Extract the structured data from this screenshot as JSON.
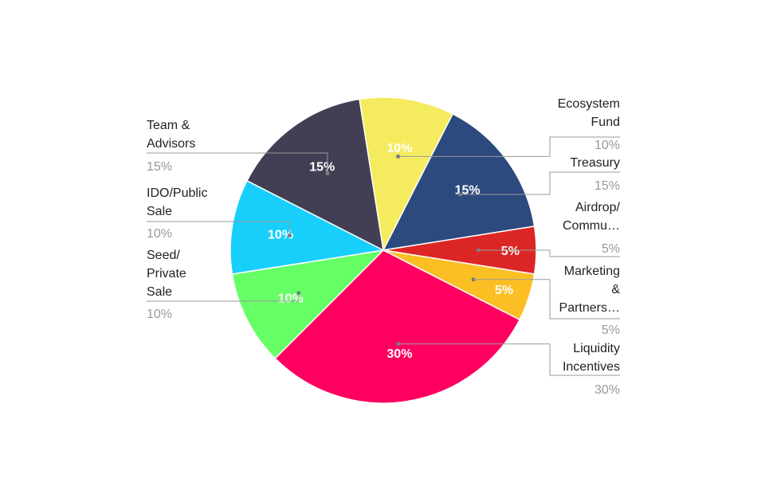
{
  "chart_data": {
    "type": "pie",
    "title": "",
    "slices": [
      {
        "label": "Ecosystem Fund",
        "label_lines": [
          "Ecosystem",
          "Fund"
        ],
        "value": 10,
        "pct_label": "10%",
        "color": "#f5eb5f",
        "inner_text_color": "#ffffff"
      },
      {
        "label": "Treasury",
        "label_lines": [
          "Treasury"
        ],
        "value": 15,
        "pct_label": "15%",
        "color": "#2c4a7e",
        "inner_text_color": "#ffffff"
      },
      {
        "label": "Airdrop/ Commu…",
        "label_lines": [
          "Airdrop/",
          "Commu…"
        ],
        "value": 5,
        "pct_label": "5%",
        "color": "#dc2626",
        "inner_text_color": "#ffffff"
      },
      {
        "label": "Marketing & Partners…",
        "label_lines": [
          "Marketing",
          "&",
          "Partners…"
        ],
        "value": 5,
        "pct_label": "5%",
        "color": "#fbbf24",
        "inner_text_color": "#ffffff"
      },
      {
        "label": "Liquidity Incentives",
        "label_lines": [
          "Liquidity",
          "Incentives"
        ],
        "value": 30,
        "pct_label": "30%",
        "color": "#ff0060",
        "inner_text_color": "#ffffff"
      },
      {
        "label": "Seed/ Private Sale",
        "label_lines": [
          "Seed/",
          "Private",
          "Sale"
        ],
        "value": 10,
        "pct_label": "10%",
        "color": "#66ff66",
        "inner_text_color": "#ffffff"
      },
      {
        "label": "IDO/Public Sale",
        "label_lines": [
          "IDO/Public",
          "Sale"
        ],
        "value": 10,
        "pct_label": "10%",
        "color": "#18cffc",
        "inner_text_color": "#ffffff"
      },
      {
        "label": "Team & Advisors",
        "label_lines": [
          "Team &",
          "Advisors"
        ],
        "value": 15,
        "pct_label": "15%",
        "color": "#423f54",
        "inner_text_color": "#ffffff"
      }
    ],
    "legend_placement": "external-callouts",
    "label_color": "#222222",
    "value_label_color": "#999999"
  }
}
